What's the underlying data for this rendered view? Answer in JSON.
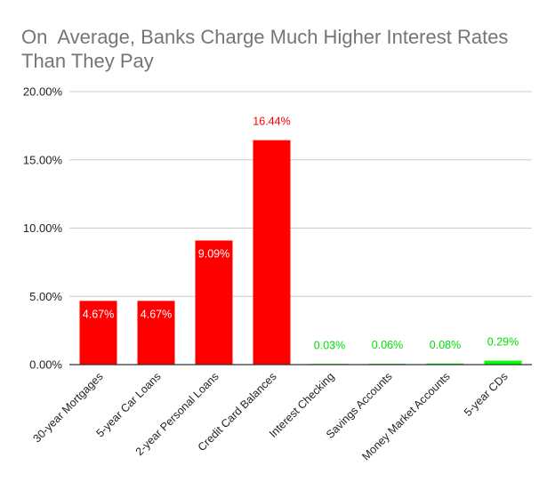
{
  "chart_data": {
    "type": "bar",
    "title": "On  Average, Banks Charge Much Higher Interest Rates Than They Pay",
    "categories": [
      "30-year Mortgages",
      "5-year Car Loans",
      "2-year Personal Loans",
      "Credit Card Balances",
      "Interest Checking",
      "Savings Accounts",
      "Money Market Accounts",
      "5-year CDs"
    ],
    "values": [
      4.67,
      4.67,
      9.09,
      16.44,
      0.03,
      0.06,
      0.08,
      0.29
    ],
    "data_labels": [
      "4.67%",
      "4.67%",
      "9.09%",
      "16.44%",
      "0.03%",
      "0.06%",
      "0.08%",
      "0.29%"
    ],
    "bar_colors": [
      "#ff0000",
      "#ff0000",
      "#ff0000",
      "#ff0000",
      "#00ff00",
      "#00ff00",
      "#00ff00",
      "#00ff00"
    ],
    "data_label_colors": [
      "#ffffff",
      "#ffffff",
      "#ffffff",
      "#ff0000",
      "#00e000",
      "#00e000",
      "#00e000",
      "#00e000"
    ],
    "data_label_inside": [
      true,
      true,
      true,
      false,
      false,
      false,
      false,
      false
    ],
    "ylim": [
      0,
      20
    ],
    "y_ticks": [
      0,
      5,
      10,
      15,
      20
    ],
    "y_tick_labels": [
      "0.00%",
      "5.00%",
      "10.00%",
      "15.00%",
      "20.00%"
    ],
    "xlabel": "",
    "ylabel": "",
    "grid": true,
    "legend": "none",
    "gridline_color": "#cccccc",
    "axis_color": "#333333"
  }
}
